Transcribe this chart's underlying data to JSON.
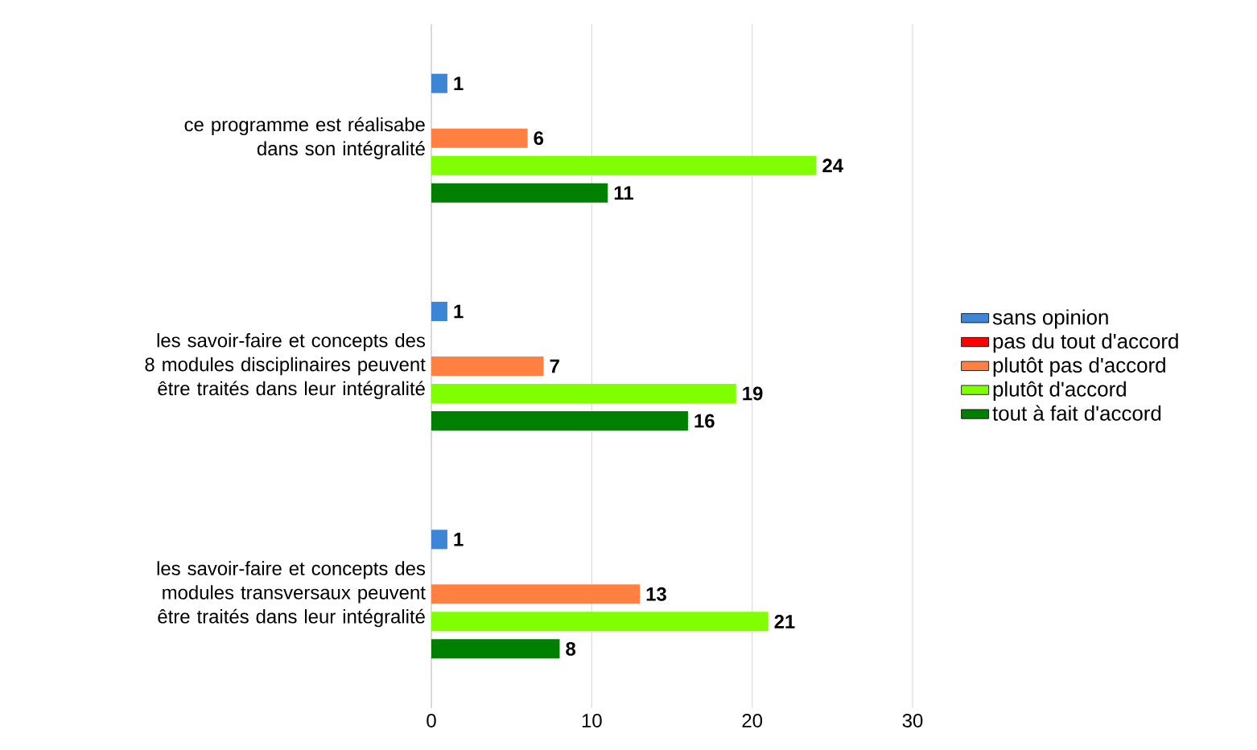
{
  "chart_data": {
    "type": "bar",
    "orientation": "horizontal",
    "categories": [
      "ce programme est réalisabe dans son intégralité",
      "les savoir-faire et concepts des 8 modules disciplinaires peuvent être traités dans leur intégralité",
      "les savoir-faire et concepts des modules transversaux peuvent être traités dans leur intégralité"
    ],
    "series": [
      {
        "name": "sans opinion",
        "color": "#3d85d6",
        "values": [
          1,
          1,
          1
        ]
      },
      {
        "name": "pas du tout d'accord",
        "color": "#ff0000",
        "values": [
          null,
          null,
          null
        ]
      },
      {
        "name": "plutôt pas d'accord",
        "color": "#ff8040",
        "values": [
          6,
          7,
          13
        ]
      },
      {
        "name": "plutôt d'accord",
        "color": "#80ff00",
        "values": [
          24,
          19,
          21
        ]
      },
      {
        "name": "tout à fait d'accord",
        "color": "#008000",
        "values": [
          11,
          16,
          8
        ]
      }
    ],
    "xlim": [
      0,
      30
    ],
    "xticks": [
      0,
      10,
      20,
      30
    ],
    "grid": "x",
    "legend": "right",
    "data_labels": true
  }
}
